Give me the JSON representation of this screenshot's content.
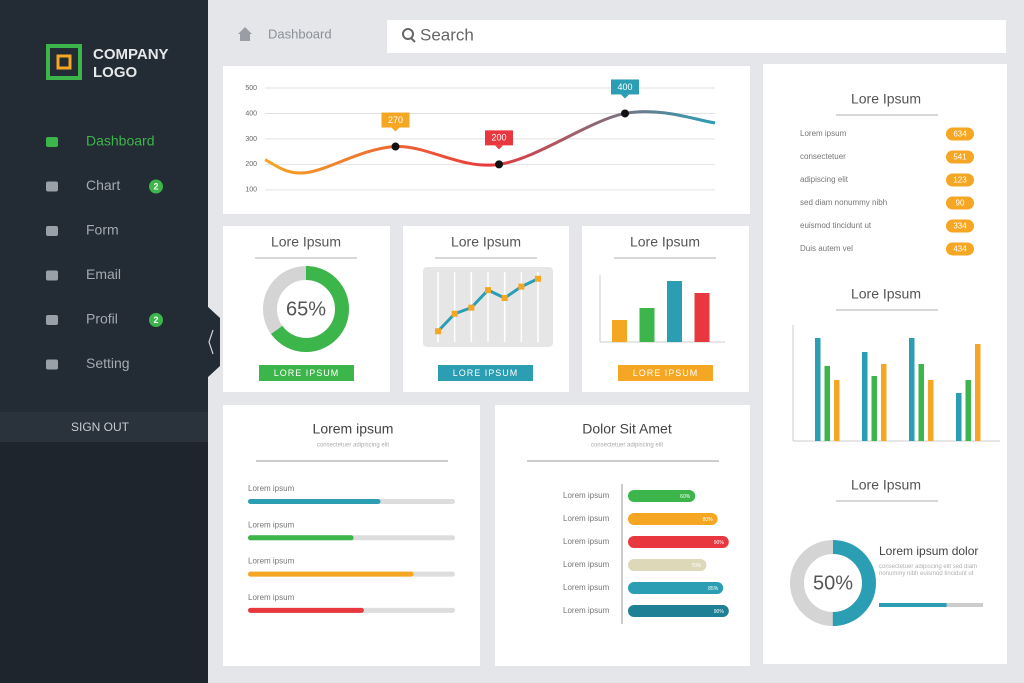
{
  "sidebar": {
    "logo": [
      "COMPANY",
      "LOGO"
    ],
    "nav": [
      {
        "label": "Dashboard"
      },
      {
        "label": "Chart",
        "badge": 2
      },
      {
        "label": "Form"
      },
      {
        "label": "Email"
      },
      {
        "label": "Profil",
        "badge": 2
      },
      {
        "label": "Setting"
      }
    ],
    "sign_out": "SIGN OUT"
  },
  "topbar": {
    "breadcrumb": "Dashboard",
    "search": "Search"
  },
  "list_panel": {
    "title": "Lore Ipsum",
    "items": [
      {
        "label": "Lorem ipsum",
        "value": 634
      },
      {
        "label": "consectetuer",
        "value": 541
      },
      {
        "label": "adipiscing elit",
        "value": 123
      },
      {
        "label": "sed diam nonummy nibh",
        "value": 90
      },
      {
        "label": "euismod tincidunt ut",
        "value": 334
      },
      {
        "label": "Duis autem vel",
        "value": 434
      }
    ]
  },
  "chart_data": [
    {
      "type": "line",
      "x": [
        0,
        0.9,
        2.9,
        5.2,
        8,
        10
      ],
      "values": [
        218,
        167,
        270,
        200,
        400,
        363
      ],
      "value_labels": [
        null,
        null,
        "270",
        "200",
        "400",
        null
      ],
      "label_colors": [
        null,
        null,
        "#f5a623",
        "#e8373e",
        "#2b9eb3",
        null
      ],
      "colors": [
        "#f5a623",
        "#e8373e",
        "#2b9eb3"
      ],
      "xlim": [
        0,
        10
      ],
      "ylim": [
        60,
        500
      ],
      "yticks": [
        100,
        200,
        300,
        400,
        500
      ],
      "grid": true
    },
    {
      "type": "donut",
      "title": "Lore Ipsum",
      "value": 65,
      "value_label": "65%",
      "color": "#3cb54a",
      "button": "LORE IPSUM"
    },
    {
      "type": "line",
      "title": "Lore Ipsum",
      "values": [
        10,
        30,
        37,
        57,
        48,
        61,
        70
      ],
      "ylim": [
        0,
        80
      ],
      "color": "#2b9eb3",
      "marker_color": "#f5a623",
      "button": "LORE IPSUM",
      "button_color": "#2b9eb3"
    },
    {
      "type": "bar",
      "title": "Lore Ipsum",
      "values": [
        22,
        34,
        61,
        49
      ],
      "colors": [
        "#f5a623",
        "#3cb54a",
        "#2b9eb3",
        "#e8373e"
      ],
      "ylim": [
        0,
        70
      ],
      "button": "LORE IPSUM",
      "button_color": "#f5a623"
    },
    {
      "type": "grouped_bar",
      "title": "Lore Ipsum",
      "ylim": [
        0,
        120
      ],
      "series": [
        {
          "color": "#2b9eb3",
          "values": [
            103,
            89,
            103,
            48
          ]
        },
        {
          "color": "#3cb54a",
          "values": [
            75,
            65,
            77,
            61
          ]
        },
        {
          "color": "#f5a623",
          "values": [
            61,
            77,
            61,
            97
          ]
        }
      ]
    },
    {
      "type": "donut",
      "title": "Lore Ipsum",
      "value": 50,
      "value_label": "50%",
      "color": "#2b9eb3",
      "side_title": "Lorem ipsum dolor",
      "side_text": "consectetuer adipiscing elit sed diam nonummy nibh euismod tincidunt ut",
      "progress": 65
    },
    {
      "type": "progress",
      "title": "Lorem ipsum",
      "subtitle": "consectetuer adipiscing elit",
      "categories": [
        "Lorem ipsum",
        "Lorem ipsum",
        "Lorem ipsum",
        "Lorem ipsum"
      ],
      "values": [
        64,
        51,
        80,
        56
      ],
      "colors": [
        "#2b9eb3",
        "#3cb54a",
        "#f5a623",
        "#e8373e"
      ]
    },
    {
      "type": "hbar",
      "title": "Dolor Sit Amet",
      "subtitle": "consectetuer adipiscing elit",
      "categories": [
        "Lorem ipsum",
        "Lorem ipsum",
        "Lorem ipsum",
        "Lorem ipsum",
        "Lorem ipsum",
        "Lorem ipsum"
      ],
      "values": [
        60,
        80,
        90,
        70,
        85,
        90
      ],
      "value_labels": [
        "60%",
        "80%",
        "90%",
        "70%",
        "85%",
        "90%"
      ],
      "colors": [
        "#3cb54a",
        "#f5a623",
        "#e8373e",
        "#ddd8b8",
        "#2b9eb3",
        "#1f7f95"
      ]
    }
  ]
}
